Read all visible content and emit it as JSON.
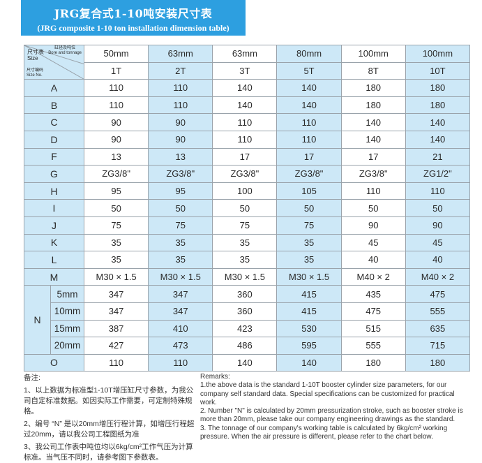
{
  "title": {
    "cn": "JRG复合式1-10吨安装尺寸表",
    "en": "(JRG composite 1-10 ton installation dimension table)"
  },
  "corner": {
    "size_cn": "尺寸表",
    "size_en": "Size",
    "bore_cn": "缸径及吨位",
    "bore_en": "Bore and tonnage",
    "num_cn": "尺寸编码",
    "num_en": "Size No."
  },
  "header": {
    "bores": [
      "50mm",
      "63mm",
      "63mm",
      "80mm",
      "100mm",
      "100mm"
    ],
    "tonnage": [
      "1T",
      "2T",
      "3T",
      "5T",
      "8T",
      "10T"
    ]
  },
  "rows": [
    {
      "label": "A",
      "values": [
        "110",
        "110",
        "140",
        "140",
        "180",
        "180"
      ]
    },
    {
      "label": "B",
      "values": [
        "110",
        "110",
        "140",
        "140",
        "180",
        "180"
      ]
    },
    {
      "label": "C",
      "values": [
        "90",
        "90",
        "110",
        "110",
        "140",
        "140"
      ]
    },
    {
      "label": "D",
      "values": [
        "90",
        "90",
        "110",
        "110",
        "140",
        "140"
      ]
    },
    {
      "label": "F",
      "values": [
        "13",
        "13",
        "17",
        "17",
        "17",
        "21"
      ]
    },
    {
      "label": "G",
      "values": [
        "ZG3/8\"",
        "ZG3/8\"",
        "ZG3/8\"",
        "ZG3/8\"",
        "ZG3/8\"",
        "ZG1/2\""
      ]
    },
    {
      "label": "H",
      "values": [
        "95",
        "95",
        "100",
        "105",
        "110",
        "110"
      ]
    },
    {
      "label": "I",
      "values": [
        "50",
        "50",
        "50",
        "50",
        "50",
        "50"
      ]
    },
    {
      "label": "J",
      "values": [
        "75",
        "75",
        "75",
        "75",
        "90",
        "90"
      ]
    },
    {
      "label": "K",
      "values": [
        "35",
        "35",
        "35",
        "35",
        "45",
        "45"
      ]
    },
    {
      "label": "L",
      "values": [
        "35",
        "35",
        "35",
        "35",
        "40",
        "40"
      ]
    },
    {
      "label": "M",
      "values": [
        "M30 × 1.5",
        "M30 × 1.5",
        "M30 × 1.5",
        "M30 × 1.5",
        "M40 × 2",
        "M40 × 2"
      ]
    }
  ],
  "n_group": {
    "label": "N",
    "rows": [
      {
        "label": "5mm",
        "values": [
          "347",
          "347",
          "360",
          "415",
          "435",
          "475"
        ]
      },
      {
        "label": "10mm",
        "values": [
          "347",
          "347",
          "360",
          "415",
          "475",
          "555"
        ]
      },
      {
        "label": "15mm",
        "values": [
          "387",
          "410",
          "423",
          "530",
          "515",
          "635"
        ]
      },
      {
        "label": "20mm",
        "values": [
          "427",
          "473",
          "486",
          "595",
          "555",
          "715"
        ]
      }
    ]
  },
  "row_o": {
    "label": "O",
    "values": [
      "110",
      "110",
      "140",
      "140",
      "180",
      "180"
    ]
  },
  "remarks_cn": {
    "heading": "备注:",
    "items": [
      "1、以上数据为标准型1-10T增压缸尺寸参数，为我公司自定标准数据。如因实际工作需要，可定制特殊规格。",
      "2、编号 “N” 是以20mm增压行程计算，如增压行程超过20mm，请以我公司工程图纸为准",
      "3、我公司工作表中吨位均以6kg/cm²工作气压为计算标准。当气压不同时，请参考图下参数表。"
    ]
  },
  "remarks_en": {
    "heading": "Remarks:",
    "items": [
      "1.the above data is the standard 1-10T booster cylinder size parameters, for our company self standard data. Special specifications can be customized for practical work.",
      "2. Number \"N\" is calculated by 20mm pressurization stroke, such as booster stroke is more than 20mm, please take our company engineering drawings as the standard.",
      "3. The tonnage of our company's working table is calculated by 6kg/cm² working pressure. When the air pressure is different, please refer to the chart below."
    ]
  }
}
